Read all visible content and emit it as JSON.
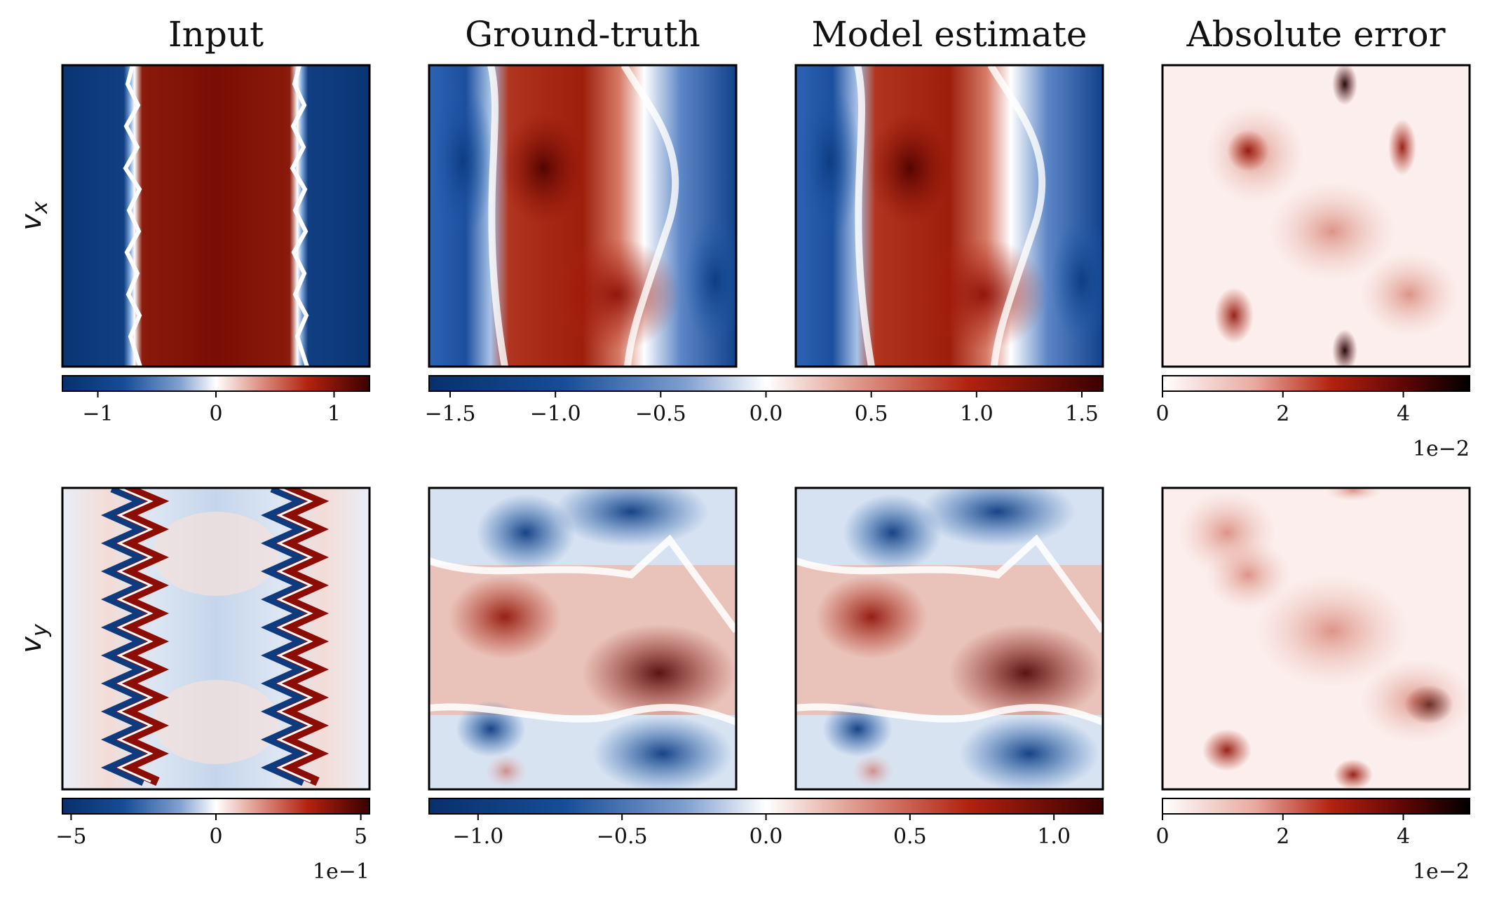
{
  "colors": {
    "dark_blue": "#08306b",
    "blue": "#1f5fb0",
    "white": "#ffffff",
    "red": "#b2220f",
    "dark_red": "#3a0000",
    "black": "#000000"
  },
  "chart_data": {
    "type": "heatmap",
    "columns": [
      "Input",
      "Ground-truth",
      "Model estimate",
      "Absolute error"
    ],
    "rows": [
      "v_x",
      "v_y"
    ],
    "row_labels": [
      {
        "base": "v",
        "sub": "x"
      },
      {
        "base": "v",
        "sub": "y"
      }
    ],
    "colorbars": [
      {
        "id": "vx_input",
        "row": 0,
        "cmap": "diverging",
        "vmin": -1.3,
        "vmax": 1.3,
        "ticks": [
          -1,
          0,
          1
        ],
        "tick_labels": [
          "−1",
          "0",
          "1"
        ],
        "scale_label": ""
      },
      {
        "id": "vx_truth_model",
        "row": 0,
        "cmap": "diverging",
        "vmin": -1.6,
        "vmax": 1.6,
        "ticks": [
          -1.5,
          -1.0,
          -0.5,
          0.0,
          0.5,
          1.0,
          1.5
        ],
        "tick_labels": [
          "−1.5",
          "−1.0",
          "−0.5",
          "0.0",
          "0.5",
          "1.0",
          "1.5"
        ],
        "scale_label": ""
      },
      {
        "id": "vx_error",
        "row": 0,
        "cmap": "sequential",
        "vmin": 0,
        "vmax": 5.1,
        "ticks": [
          0,
          2,
          4
        ],
        "tick_labels": [
          "0",
          "2",
          "4"
        ],
        "scale_label": "1e−2"
      },
      {
        "id": "vy_input",
        "row": 1,
        "cmap": "diverging",
        "vmin": -5.3,
        "vmax": 5.3,
        "ticks": [
          -5,
          0,
          5
        ],
        "tick_labels": [
          "−5",
          "0",
          "5"
        ],
        "scale_label": "1e−1"
      },
      {
        "id": "vy_truth_model",
        "row": 1,
        "cmap": "diverging",
        "vmin": -1.17,
        "vmax": 1.17,
        "ticks": [
          -1.0,
          -0.5,
          0.0,
          0.5,
          1.0
        ],
        "tick_labels": [
          "−1.0",
          "−0.5",
          "0.0",
          "0.5",
          "1.0"
        ],
        "scale_label": ""
      },
      {
        "id": "vy_error",
        "row": 1,
        "cmap": "sequential",
        "vmin": 0,
        "vmax": 5.1,
        "ticks": [
          0,
          2,
          4
        ],
        "tick_labels": [
          "0",
          "2",
          "4"
        ],
        "scale_label": "1e−2"
      }
    ]
  }
}
